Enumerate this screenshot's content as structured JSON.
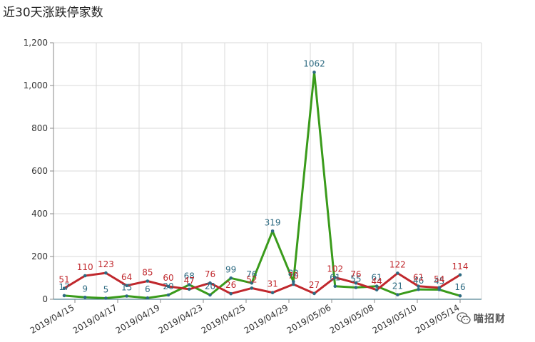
{
  "title": "近30天涨跌停家数",
  "watermark": {
    "text": "喵招财",
    "icon": "wechat-icon"
  },
  "chart_data": {
    "type": "line",
    "title": "近30天涨跌停家数",
    "xlabel": "",
    "ylabel": "",
    "ylim": [
      0,
      1200
    ],
    "yticks": [
      0,
      200,
      400,
      600,
      800,
      1000,
      1200
    ],
    "ytick_labels": [
      "0",
      "200",
      "400",
      "600",
      "800",
      "1,000",
      "1,200"
    ],
    "grid": true,
    "legend": "none",
    "x_tick_labels": [
      "2019/04/15",
      "2019/04/17",
      "2019/04/19",
      "2019/04/23",
      "2019/04/25",
      "2019/04/29",
      "2019/05/06",
      "2019/05/08",
      "2019/05/10",
      "2019/05/14"
    ],
    "series": [
      {
        "color": "#c0282d",
        "label_color": "#c0282d",
        "values": [
          51,
          110,
          123,
          64,
          85,
          60,
          47,
          76,
          26,
          52,
          31,
          70,
          27,
          102,
          76,
          44,
          122,
          61,
          54,
          114
        ],
        "labels": [
          "51",
          "110",
          "123",
          "64",
          "85",
          "60",
          "47",
          "76",
          "26",
          "52",
          "31",
          "70",
          "27",
          "102",
          "76",
          "44",
          "122",
          "61",
          "54",
          "114"
        ]
      },
      {
        "color": "#3a9b1b",
        "label_color": "#2e6b82",
        "values": [
          17,
          9,
          5,
          15,
          6,
          20,
          68,
          20,
          99,
          76,
          319,
          82,
          1062,
          61,
          55,
          61,
          21,
          46,
          45,
          16
        ],
        "labels": [
          "17",
          "9",
          "5",
          "15",
          "6",
          "20",
          "68",
          "20",
          "99",
          "76",
          "319",
          "82",
          "1062",
          "61",
          "55",
          "61",
          "21",
          "46",
          "45",
          "16"
        ]
      }
    ]
  }
}
